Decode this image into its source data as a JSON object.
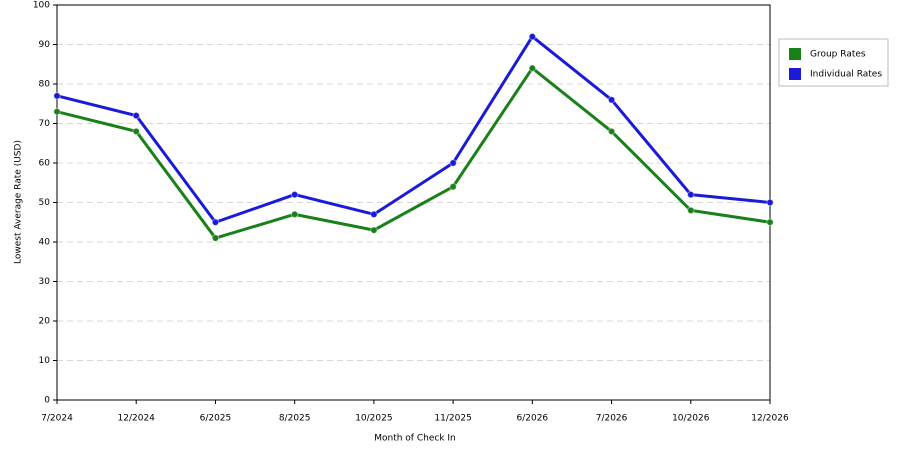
{
  "chart_data": {
    "type": "line",
    "x_label": "Month of Check In",
    "y_label": "Lowest Average Rate (USD)",
    "categories": [
      "7/2024",
      "12/2024",
      "6/2025",
      "8/2025",
      "10/2025",
      "11/2025",
      "6/2026",
      "7/2026",
      "10/2026",
      "12/2026"
    ],
    "series": [
      {
        "name": "Group Rates",
        "color": "#1a801a",
        "values": [
          73,
          68,
          41,
          47,
          43,
          54,
          84,
          68,
          48,
          45
        ]
      },
      {
        "name": "Individual Rates",
        "color": "#1a1ad9",
        "values": [
          77,
          72,
          45,
          52,
          47,
          60,
          92,
          76,
          52,
          50
        ]
      }
    ],
    "ylim": [
      0,
      100
    ],
    "yticks": [
      0,
      10,
      20,
      30,
      40,
      50,
      60,
      70,
      80,
      90,
      100
    ],
    "grid": true,
    "legend": "right"
  }
}
